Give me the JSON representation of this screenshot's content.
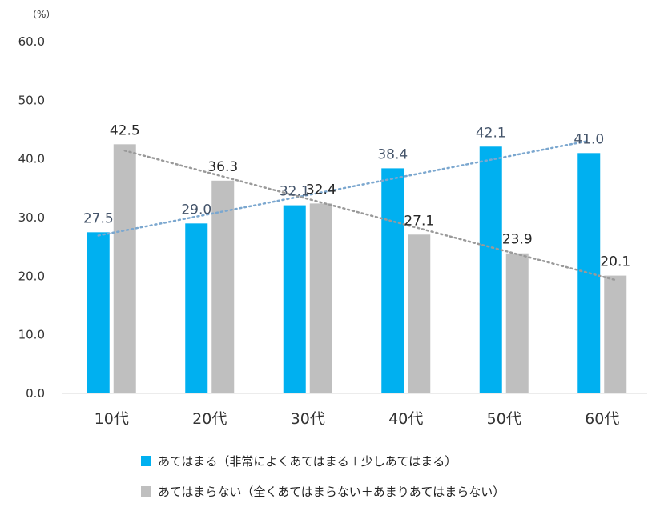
{
  "chart_data": {
    "type": "bar",
    "unit_label": "（%）",
    "categories": [
      "10代",
      "20代",
      "30代",
      "40代",
      "50代",
      "60代"
    ],
    "yticks": [
      "0.0",
      "10.0",
      "20.0",
      "30.0",
      "40.0",
      "50.0",
      "60.0"
    ],
    "ylim": [
      0,
      60
    ],
    "grid": false,
    "legend_position": "bottom",
    "trendlines": true,
    "series": [
      {
        "name": "あてはまる（非常によくあてはまる＋少しあてはまる）",
        "color": "#00b0f0",
        "label_color": "#44546a",
        "trend_color": "#7ba7cf",
        "values": [
          27.5,
          29.0,
          32.1,
          38.4,
          42.1,
          41.0
        ],
        "labels": [
          "27.5",
          "29.0",
          "32.1",
          "38.4",
          "42.1",
          "41.0"
        ]
      },
      {
        "name": "あてはまらない（全くあてはまらない＋あまりあてはまらない）",
        "color": "#bfbfbf",
        "label_color": "#262626",
        "trend_color": "#9a9a9a",
        "values": [
          42.5,
          36.3,
          32.4,
          27.1,
          23.9,
          20.1
        ],
        "labels": [
          "42.5",
          "36.3",
          "32.4",
          "27.1",
          "23.9",
          "20.1"
        ]
      }
    ]
  }
}
